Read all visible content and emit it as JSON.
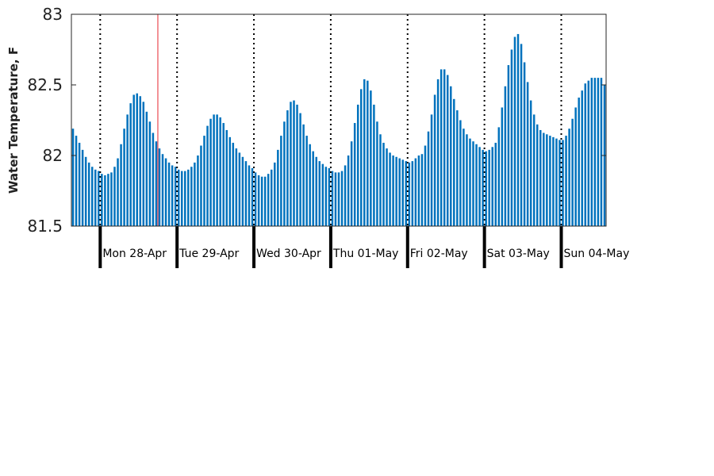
{
  "chart_data": {
    "type": "bar",
    "ylabel": "Water Temperature, F",
    "ylim": [
      81.5,
      83
    ],
    "yticks": [
      81.5,
      82,
      82.5,
      83
    ],
    "ytick_labels": [
      "81.5",
      "82",
      "82.5",
      "83"
    ],
    "grid": false,
    "bar_color": "#0072bd",
    "marker_color": "#e6262e",
    "marker_hour": 18,
    "hours_per_bar": 1,
    "day_labels": [
      "Mon 28-Apr",
      "Tue 29-Apr",
      "Wed 30-Apr",
      "Thu 01-May",
      "Fri 02-May",
      "Sat 03-May",
      "Sun 04-May"
    ],
    "hour_start": -9,
    "values": [
      82.19,
      82.14,
      82.09,
      82.04,
      81.99,
      81.95,
      81.92,
      81.9,
      81.89,
      81.87,
      81.86,
      81.87,
      81.88,
      81.92,
      81.98,
      82.08,
      82.19,
      82.29,
      82.37,
      82.43,
      82.44,
      82.42,
      82.38,
      82.31,
      82.24,
      82.16,
      82.1,
      82.05,
      82.01,
      81.98,
      81.95,
      81.93,
      81.92,
      81.9,
      81.89,
      81.89,
      81.9,
      81.92,
      81.95,
      82.0,
      82.07,
      82.14,
      82.21,
      82.26,
      82.29,
      82.29,
      82.27,
      82.23,
      82.18,
      82.13,
      82.09,
      82.05,
      82.02,
      81.99,
      81.96,
      81.93,
      81.91,
      81.88,
      81.86,
      81.85,
      81.85,
      81.87,
      81.9,
      81.95,
      82.04,
      82.14,
      82.24,
      82.32,
      82.38,
      82.39,
      82.36,
      82.3,
      82.22,
      82.14,
      82.08,
      82.03,
      81.99,
      81.96,
      81.94,
      81.92,
      81.91,
      81.89,
      81.88,
      81.88,
      81.89,
      81.93,
      82.0,
      82.1,
      82.23,
      82.36,
      82.47,
      82.54,
      82.53,
      82.46,
      82.36,
      82.24,
      82.15,
      82.09,
      82.05,
      82.02,
      82.0,
      81.99,
      81.98,
      81.97,
      81.96,
      81.95,
      81.96,
      81.98,
      82.0,
      82.01,
      82.07,
      82.17,
      82.29,
      82.43,
      82.54,
      82.61,
      82.61,
      82.57,
      82.49,
      82.4,
      82.32,
      82.25,
      82.19,
      82.15,
      82.12,
      82.1,
      82.08,
      82.06,
      82.04,
      82.03,
      82.04,
      82.06,
      82.09,
      82.2,
      82.34,
      82.49,
      82.64,
      82.75,
      82.84,
      82.86,
      82.79,
      82.66,
      82.52,
      82.39,
      82.29,
      82.22,
      82.18,
      82.16,
      82.15,
      82.14,
      82.13,
      82.12,
      82.11,
      82.11,
      82.14,
      82.19,
      82.26,
      82.34,
      82.41,
      82.46,
      82.51,
      82.53,
      82.55,
      82.55,
      82.55,
      82.55,
      82.5
    ]
  }
}
